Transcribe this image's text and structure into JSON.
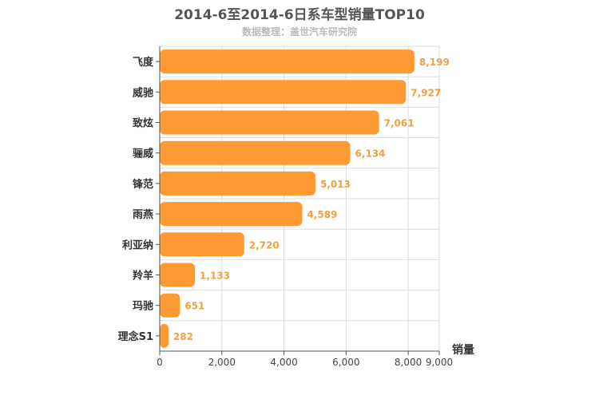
{
  "title": "2014-6至2014-6日系车型销量TOP10",
  "subtitle": "数据整理：盖世汽车研究院",
  "colors": {
    "bar": "#ff9a33",
    "data_label": "#f0a040",
    "grid": "#dddddd",
    "axis": "#555555"
  },
  "chart_data": {
    "type": "bar",
    "orientation": "horizontal",
    "categories": [
      "飞度",
      "威驰",
      "致炫",
      "骊威",
      "锋范",
      "雨燕",
      "利亚纳",
      "羚羊",
      "玛驰",
      "理念S1"
    ],
    "values": [
      8199,
      7927,
      7061,
      6134,
      5013,
      4589,
      2720,
      1133,
      651,
      282
    ],
    "value_labels": [
      "8,199",
      "7,927",
      "7,061",
      "6,134",
      "5,013",
      "4,589",
      "2,720",
      "1,133",
      "651",
      "282"
    ],
    "xlim": [
      0,
      9000
    ],
    "xticks": [
      0,
      2000,
      4000,
      6000,
      8000,
      9000
    ],
    "xtick_labels": [
      "0",
      "2,000",
      "4,000",
      "6,000",
      "8,000",
      "9,000"
    ],
    "xlabel": "销量",
    "ylabel": "",
    "grid": true,
    "legend": "none"
  }
}
